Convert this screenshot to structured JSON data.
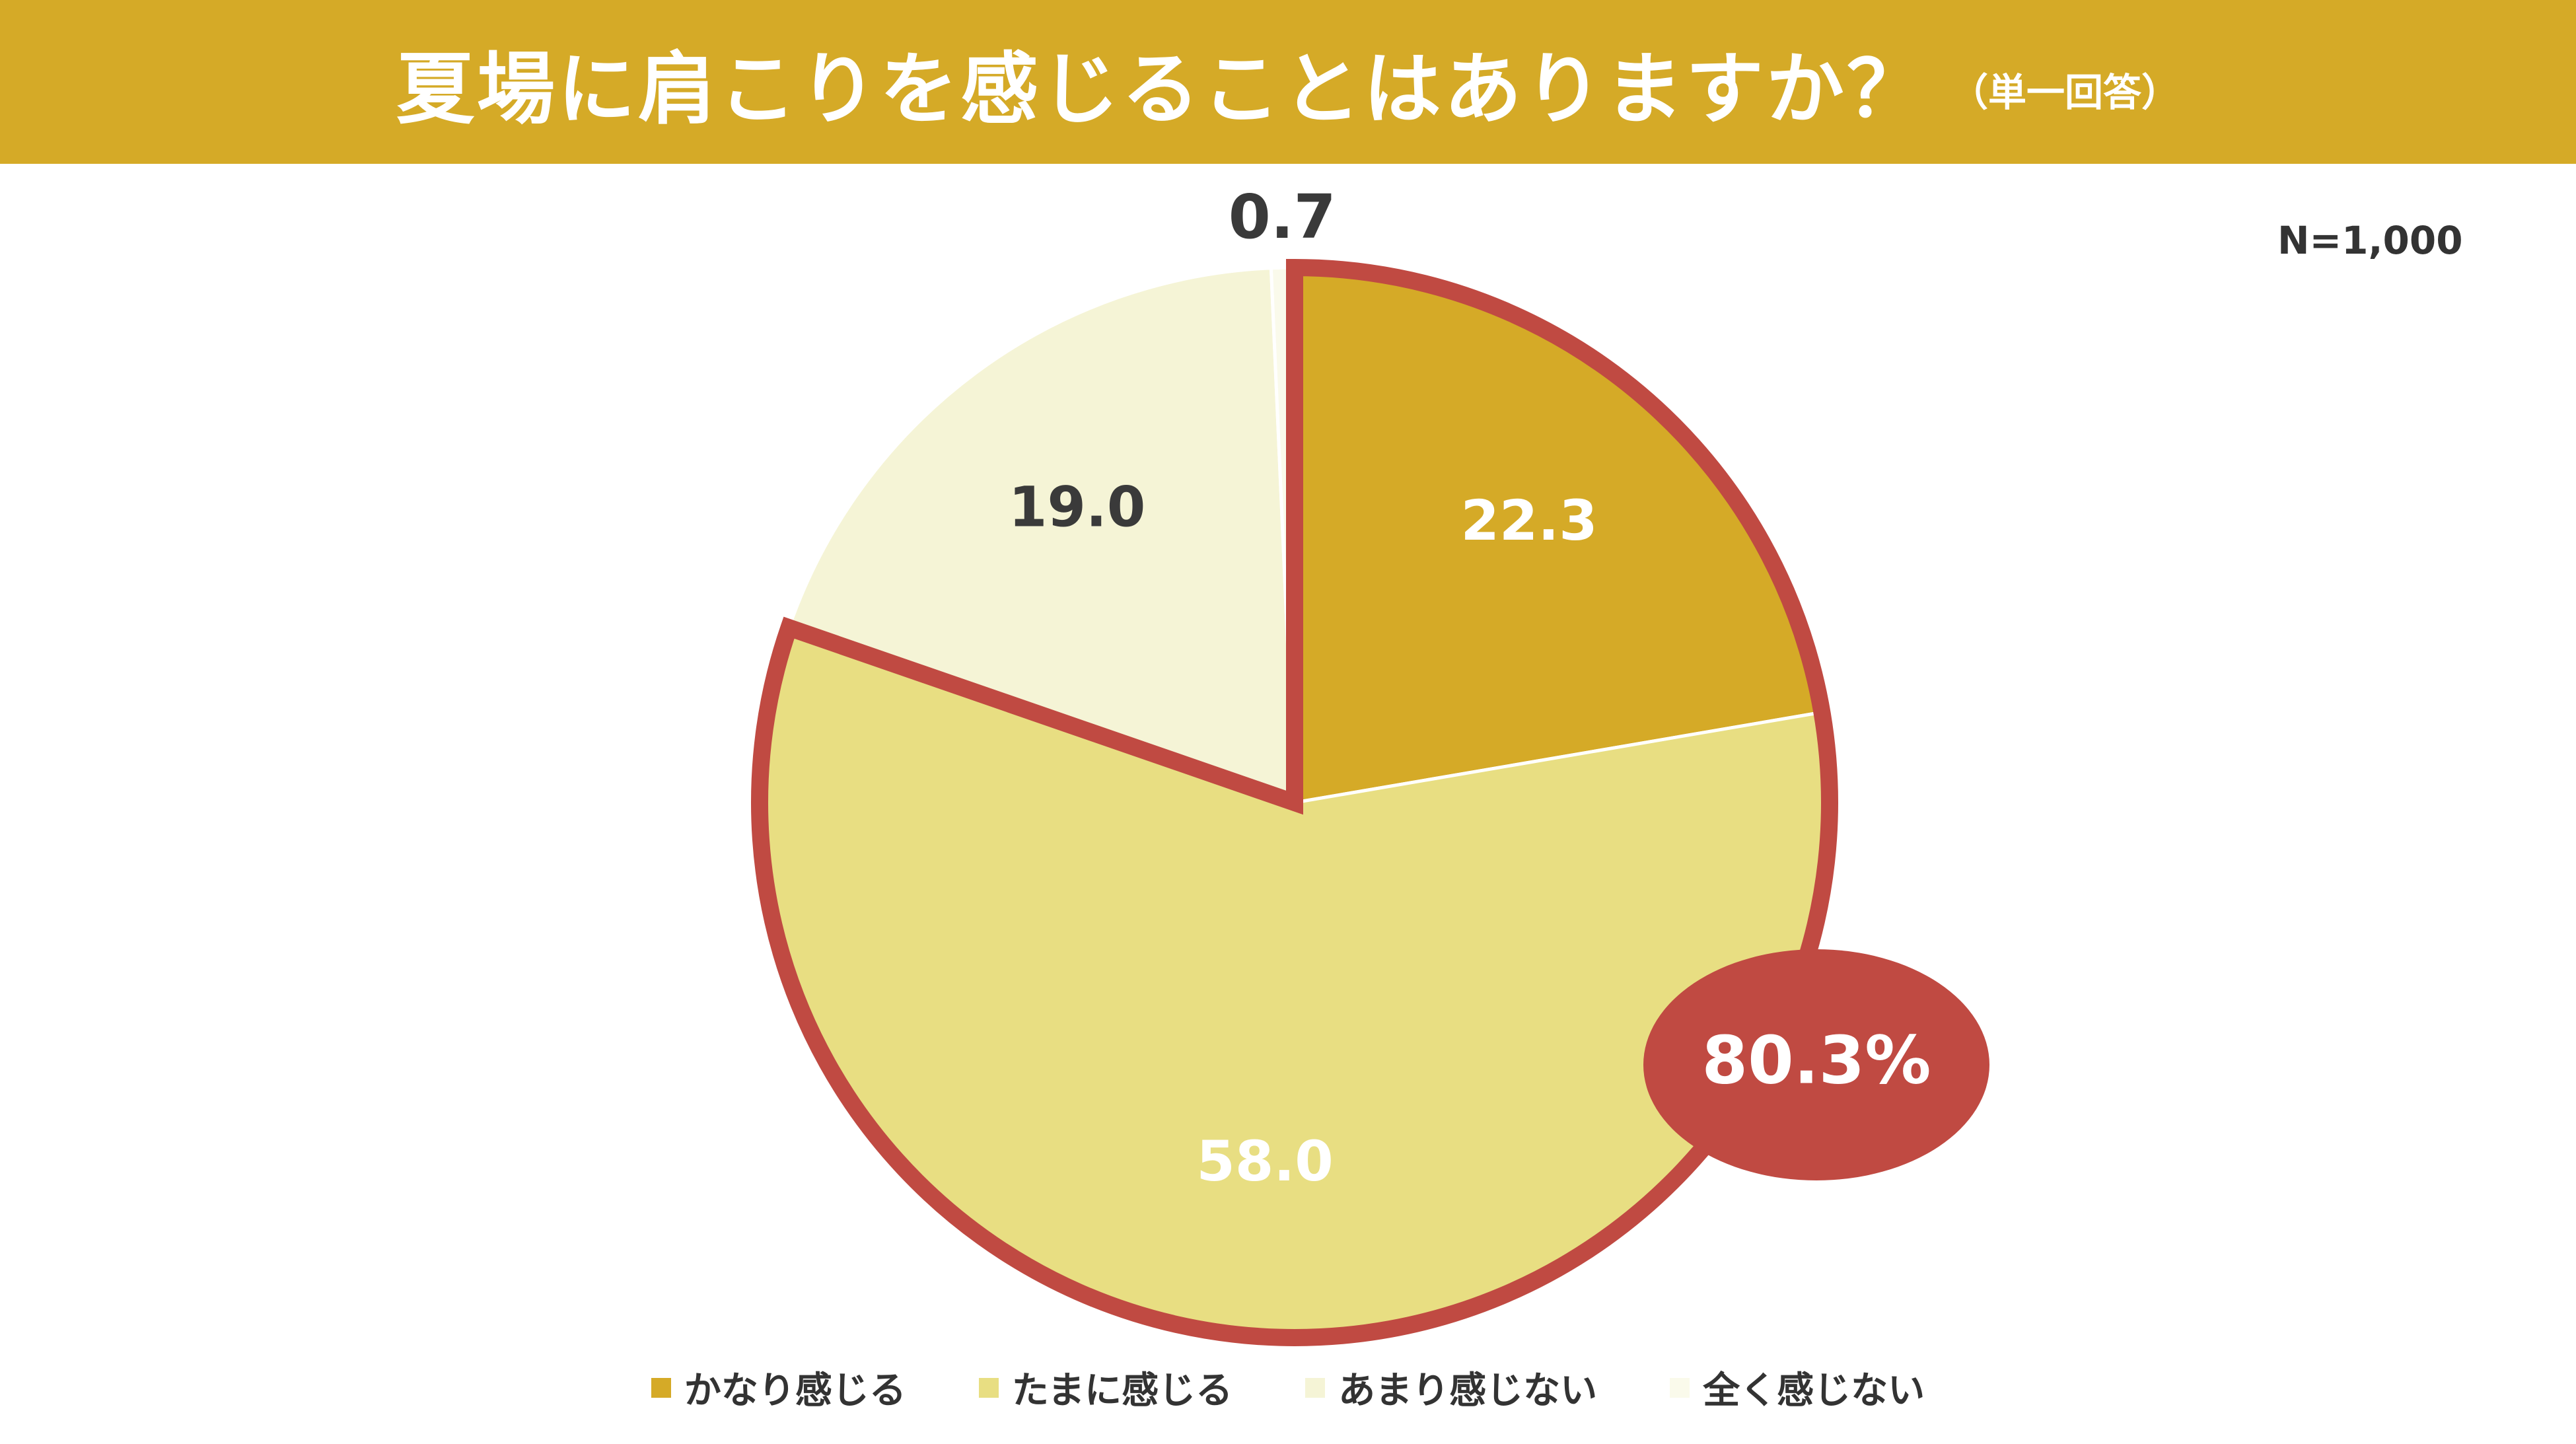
{
  "header": {
    "title": "夏場に肩こりを感じることはありますか？",
    "subtitle": "（単一回答）"
  },
  "sample_size": "N=1,000",
  "highlight": {
    "label": "80.3%",
    "color": "#c04a42"
  },
  "chart_data": {
    "type": "pie",
    "title": "夏場に肩こりを感じることはありますか？",
    "categories": [
      "かなり感じる",
      "たまに感じる",
      "あまり感じない",
      "全く感じない"
    ],
    "values": [
      22.3,
      58.0,
      19.0,
      0.7
    ],
    "value_labels": [
      "22.3",
      "58.0",
      "19.0",
      "0.7"
    ],
    "colors": [
      "#d5aa27",
      "#e8de82",
      "#f5f4d6",
      "#fafaeb"
    ],
    "label_colors": [
      "#ffffff",
      "#ffffff",
      "#3a3a3a",
      "#3a3a3a"
    ],
    "start_angle_deg": 0,
    "direction": "clockwise",
    "legend_position": "bottom",
    "highlighted_categories": [
      "かなり感じる",
      "たまに感じる"
    ]
  }
}
